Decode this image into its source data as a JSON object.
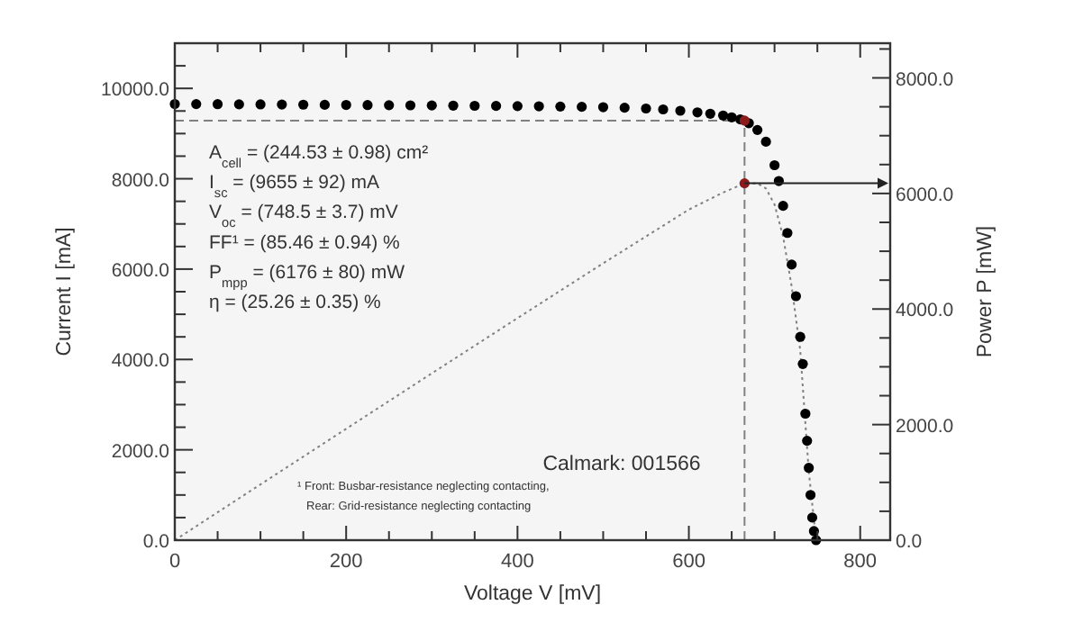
{
  "chart_data": {
    "type": "scatter",
    "xlabel": "Voltage V [mV]",
    "ylabel": "Current I [mA]",
    "y2label": "Power P [mW]",
    "xlim": [
      0,
      835
    ],
    "xticks": [
      0,
      {
        "value": 50,
        "label": null
      },
      {
        "value": 100,
        "label": null
      },
      {
        "value": 150,
        "label": null
      },
      200,
      {
        "value": 250,
        "label": null
      },
      {
        "value": 300,
        "label": null
      },
      {
        "value": 350,
        "label": null
      },
      400,
      {
        "value": 450,
        "label": null
      },
      {
        "value": 500,
        "label": null
      },
      {
        "value": 550,
        "label": null
      },
      600,
      {
        "value": 650,
        "label": null
      },
      {
        "value": 700,
        "label": null
      },
      {
        "value": 750,
        "label": null
      },
      800
    ],
    "ylim": [
      0,
      11000
    ],
    "yticks": [
      {
        "value": 0,
        "label": "0.0"
      },
      {
        "value": 500,
        "label": null
      },
      {
        "value": 1000,
        "label": null
      },
      {
        "value": 1500,
        "label": null
      },
      {
        "value": 2000,
        "label": "2000.0"
      },
      {
        "value": 2500,
        "label": null
      },
      {
        "value": 3000,
        "label": null
      },
      {
        "value": 3500,
        "label": null
      },
      {
        "value": 4000,
        "label": "4000.0"
      },
      {
        "value": 4500,
        "label": null
      },
      {
        "value": 5000,
        "label": null
      },
      {
        "value": 5500,
        "label": null
      },
      {
        "value": 6000,
        "label": "6000.0"
      },
      {
        "value": 6500,
        "label": null
      },
      {
        "value": 7000,
        "label": null
      },
      {
        "value": 7500,
        "label": null
      },
      {
        "value": 8000,
        "label": "8000.0"
      },
      {
        "value": 8500,
        "label": null
      },
      {
        "value": 9000,
        "label": null
      },
      {
        "value": 9500,
        "label": null
      },
      {
        "value": 10000,
        "label": "10000.0"
      },
      {
        "value": 10500,
        "label": null
      }
    ],
    "y2lim": [
      0,
      8600
    ],
    "y2ticks": [
      {
        "value": 0,
        "label": "0.0"
      },
      {
        "value": 500,
        "label": null
      },
      {
        "value": 1000,
        "label": null
      },
      {
        "value": 1500,
        "label": null
      },
      {
        "value": 2000,
        "label": "2000.0"
      },
      {
        "value": 2500,
        "label": null
      },
      {
        "value": 3000,
        "label": null
      },
      {
        "value": 3500,
        "label": null
      },
      {
        "value": 4000,
        "label": "4000.0"
      },
      {
        "value": 4500,
        "label": null
      },
      {
        "value": 5000,
        "label": null
      },
      {
        "value": 5500,
        "label": null
      },
      {
        "value": 6000,
        "label": "6000.0"
      },
      {
        "value": 6500,
        "label": null
      },
      {
        "value": 7000,
        "label": null
      },
      {
        "value": 7500,
        "label": null
      },
      {
        "value": 8000,
        "label": "8000.0"
      },
      {
        "value": 8500,
        "label": null
      }
    ],
    "grid": false,
    "series": [
      {
        "marker": "circle",
        "color": "#000000",
        "x": [
          0,
          25,
          50,
          75,
          100,
          125,
          150,
          175,
          200,
          225,
          250,
          275,
          300,
          325,
          350,
          375,
          400,
          425,
          450,
          475,
          500,
          525,
          550,
          570,
          590,
          610,
          625,
          640,
          650,
          660,
          670,
          680,
          690,
          700,
          705,
          710,
          715,
          720,
          725,
          730,
          733,
          736,
          738,
          740,
          742,
          744,
          746,
          748.5
        ],
        "values": [
          9655,
          9653,
          9651,
          9648,
          9646,
          9643,
          9640,
          9637,
          9634,
          9631,
          9628,
          9625,
          9622,
          9619,
          9615,
          9612,
          9608,
          9604,
          9598,
          9592,
          9584,
          9572,
          9555,
          9535,
          9505,
          9470,
          9440,
          9400,
          9360,
          9315,
          9230,
          9080,
          8820,
          8300,
          7950,
          7400,
          6800,
          6100,
          5400,
          4500,
          3900,
          2800,
          2200,
          1600,
          1000,
          500,
          200,
          0
        ]
      },
      {
        "type": "line",
        "axis": "y2",
        "line_style": "dotted",
        "color": "#808080",
        "x": [
          0,
          100,
          200,
          300,
          400,
          500,
          600,
          640,
          665,
          680,
          690,
          700,
          710,
          720,
          730,
          740,
          748.5
        ],
        "values": [
          0,
          965,
          1927,
          2887,
          3843,
          4792,
          5721,
          6016,
          6176,
          6174,
          6086,
          5810,
          5254,
          4392,
          3285,
          1184,
          0
        ]
      },
      {
        "type": "line",
        "line_style": "dashed",
        "color": "#808080",
        "x": [
          0,
          665
        ],
        "values": [
          9287,
          9287
        ]
      },
      {
        "type": "line",
        "line_style": "dashed",
        "color": "#808080",
        "x": [
          665,
          665
        ],
        "values": [
          0,
          9287
        ]
      },
      {
        "type": "scatter",
        "marker": "circle",
        "color": "#8b1a1a",
        "x": [
          665
        ],
        "values": [
          9287
        ]
      },
      {
        "type": "scatter",
        "axis": "y2",
        "marker": "circle",
        "color": "#8b1a1a",
        "x": [
          665
        ],
        "values": [
          6176
        ]
      }
    ],
    "annotations": [
      "A$_{cell}$ = (244.53 ± 0.98) cm²",
      "I$_{sc}$ = (9655 ± 92) mA",
      "V$_{oc}$ = (748.5 ± 3.7) mV",
      "FF¹ = (85.46 ± 0.94) %",
      "P$_{mpp}$ = (6176 ± 80) mW",
      "η = (25.26 ± 0.35) %",
      "¹ Front: Busbar-resistance neglecting contacting,",
      "Rear: Grid-resistance neglecting contacting",
      "Calmark: 001566"
    ]
  }
}
